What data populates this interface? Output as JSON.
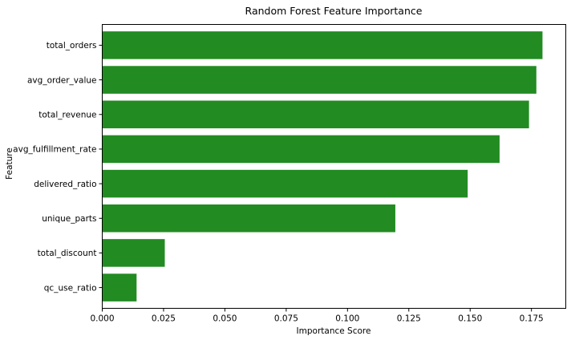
{
  "chart_data": {
    "type": "bar",
    "orientation": "horizontal",
    "title": "Random Forest Feature Importance",
    "xlabel": "Importance Score",
    "ylabel": "Feature",
    "categories": [
      "total_orders",
      "avg_order_value",
      "total_revenue",
      "avg_fulfillment_rate",
      "delivered_ratio",
      "unique_parts",
      "total_discount",
      "qc_use_ratio"
    ],
    "values": [
      0.1795,
      0.177,
      0.174,
      0.162,
      0.149,
      0.1195,
      0.0255,
      0.014
    ],
    "xlim": [
      0,
      0.189
    ],
    "xticks": [
      0.0,
      0.025,
      0.05,
      0.075,
      0.1,
      0.125,
      0.15,
      0.175
    ],
    "xtick_labels": [
      "0.000",
      "0.025",
      "0.050",
      "0.075",
      "0.100",
      "0.125",
      "0.150",
      "0.175"
    ],
    "bar_color": "#228b22",
    "grid": false,
    "legend": "none"
  }
}
